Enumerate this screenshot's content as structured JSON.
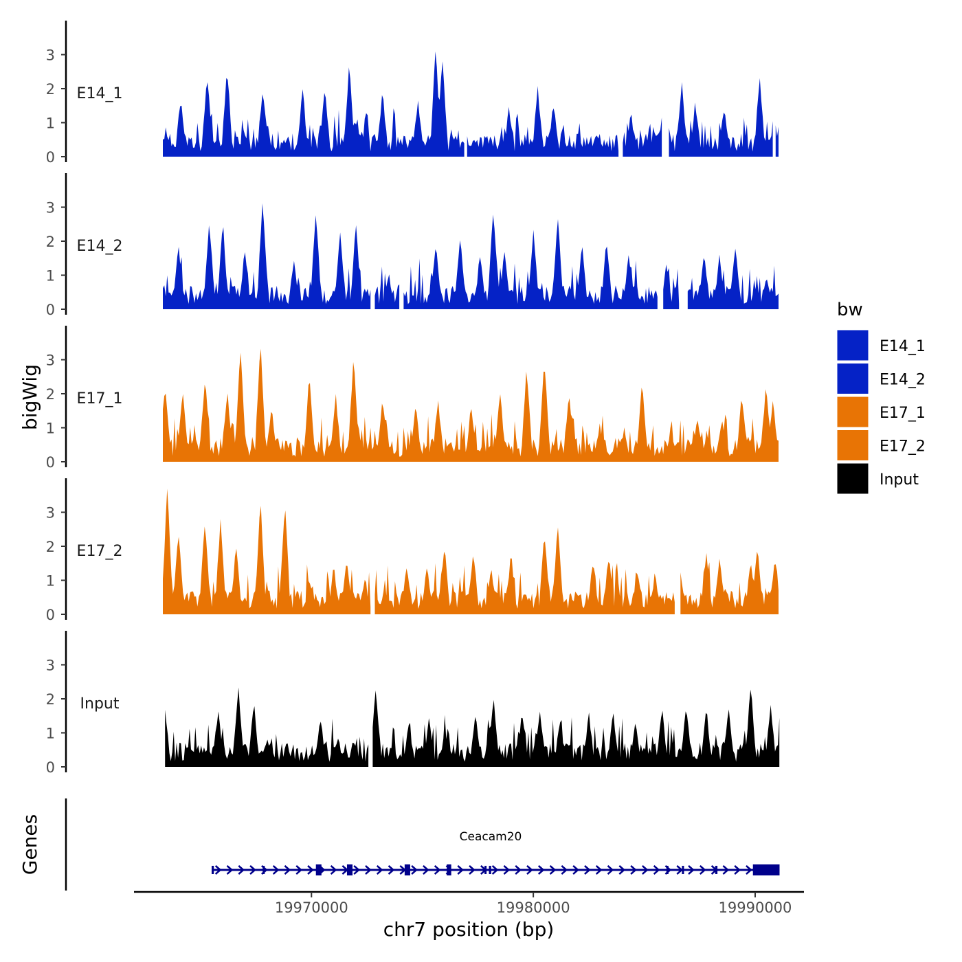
{
  "chart_data": {
    "type": "area",
    "y_axis_label": "bigWig",
    "genes_label": "Genes",
    "xlabel": "chr7 position (bp)",
    "xlim": [
      19962000,
      19992200
    ],
    "x_ticks": [
      19970000,
      19980000,
      19990000
    ],
    "x_tick_labels": [
      "19970000",
      "19980000",
      "19990000"
    ],
    "ylim": [
      0,
      4
    ],
    "y_ticks": [
      0,
      1,
      2,
      3
    ],
    "y_tick_labels": [
      "0",
      "1",
      "2",
      "3"
    ],
    "legend": {
      "title": "bw",
      "position": "right",
      "entries": [
        {
          "label": "E14_1",
          "color": "#0522C6"
        },
        {
          "label": "E14_2",
          "color": "#0522C6"
        },
        {
          "label": "E17_1",
          "color": "#E87405"
        },
        {
          "label": "E17_2",
          "color": "#E87405"
        },
        {
          "label": "Input",
          "color": "#000000"
        }
      ]
    },
    "tracks": [
      {
        "name": "E14_1",
        "color": "#0522C6",
        "x_start": 19963300,
        "x_end": 19991100,
        "peaks": [
          [
            19964100,
            1.6
          ],
          [
            19965300,
            2.3
          ],
          [
            19966200,
            2.5
          ],
          [
            19967800,
            1.9
          ],
          [
            19969600,
            1.9
          ],
          [
            19970600,
            2.0
          ],
          [
            19971700,
            2.6
          ],
          [
            19973200,
            1.8
          ],
          [
            19974800,
            1.6
          ],
          [
            19975600,
            3.1
          ],
          [
            19975900,
            2.8
          ],
          [
            19978900,
            1.3
          ],
          [
            19980200,
            1.9
          ],
          [
            19980900,
            1.5
          ],
          [
            19984400,
            1.2
          ],
          [
            19985800,
            1.0
          ],
          [
            19986700,
            2.0
          ],
          [
            19987300,
            1.5
          ],
          [
            19988600,
            1.3
          ],
          [
            19990200,
            2.2
          ]
        ],
        "gaps": [
          [
            19976900,
            19977000
          ],
          [
            19983900,
            19984000
          ],
          [
            19985800,
            19986100
          ],
          [
            19990800,
            19990900
          ]
        ]
      },
      {
        "name": "E14_2",
        "color": "#0522C6",
        "x_start": 19963300,
        "x_end": 19991100,
        "peaks": [
          [
            19964000,
            1.9
          ],
          [
            19965400,
            2.5
          ],
          [
            19966000,
            2.5
          ],
          [
            19967000,
            1.7
          ],
          [
            19967800,
            3.2
          ],
          [
            19969200,
            1.3
          ],
          [
            19970200,
            2.8
          ],
          [
            19971300,
            2.2
          ],
          [
            19972000,
            2.4
          ],
          [
            19973500,
            0.9
          ],
          [
            19975600,
            1.8
          ],
          [
            19976700,
            2.0
          ],
          [
            19977600,
            1.5
          ],
          [
            19978200,
            2.9
          ],
          [
            19978700,
            1.6
          ],
          [
            19980000,
            2.2
          ],
          [
            19981100,
            2.7
          ],
          [
            19982200,
            1.8
          ],
          [
            19983300,
            1.9
          ],
          [
            19984300,
            1.6
          ],
          [
            19986000,
            1.2
          ],
          [
            19987700,
            1.6
          ],
          [
            19988400,
            1.5
          ],
          [
            19989100,
            1.8
          ],
          [
            19990500,
            0.8
          ]
        ],
        "gaps": [
          [
            19972700,
            19972800
          ],
          [
            19974000,
            19974100
          ],
          [
            19985600,
            19985800
          ],
          [
            19986600,
            19986900
          ]
        ]
      },
      {
        "name": "E17_1",
        "color": "#E87405",
        "x_start": 19963300,
        "x_end": 19991100,
        "peaks": [
          [
            19963400,
            2.2
          ],
          [
            19964200,
            2.0
          ],
          [
            19965200,
            2.4
          ],
          [
            19966200,
            2.0
          ],
          [
            19966800,
            3.3
          ],
          [
            19967700,
            3.4
          ],
          [
            19968200,
            1.5
          ],
          [
            19969900,
            2.4
          ],
          [
            19971100,
            1.8
          ],
          [
            19971900,
            3.1
          ],
          [
            19973200,
            1.8
          ],
          [
            19974700,
            1.6
          ],
          [
            19975700,
            1.7
          ],
          [
            19977200,
            1.6
          ],
          [
            19978500,
            2.0
          ],
          [
            19979700,
            2.7
          ],
          [
            19980500,
            2.9
          ],
          [
            19981600,
            1.9
          ],
          [
            19983000,
            1.0
          ],
          [
            19984100,
            0.9
          ],
          [
            19984900,
            2.2
          ],
          [
            19986200,
            0.9
          ],
          [
            19987400,
            1.2
          ],
          [
            19988500,
            1.2
          ],
          [
            19989400,
            1.9
          ],
          [
            19990500,
            2.2
          ],
          [
            19990800,
            1.7
          ]
        ],
        "gaps": []
      },
      {
        "name": "E17_2",
        "color": "#E87405",
        "x_start": 19963300,
        "x_end": 19991100,
        "peaks": [
          [
            19963500,
            3.7
          ],
          [
            19964000,
            2.4
          ],
          [
            19965200,
            2.7
          ],
          [
            19965900,
            2.7
          ],
          [
            19966600,
            1.9
          ],
          [
            19967700,
            3.3
          ],
          [
            19968800,
            3.2
          ],
          [
            19969900,
            0.9
          ],
          [
            19971000,
            1.3
          ],
          [
            19971600,
            1.5
          ],
          [
            19972400,
            1.0
          ],
          [
            19974300,
            1.3
          ],
          [
            19975200,
            1.3
          ],
          [
            19976000,
            1.9
          ],
          [
            19977300,
            1.8
          ],
          [
            19978100,
            1.2
          ],
          [
            19979000,
            1.7
          ],
          [
            19980500,
            2.3
          ],
          [
            19981100,
            2.5
          ],
          [
            19982700,
            1.5
          ],
          [
            19983400,
            1.6
          ],
          [
            19984700,
            1.2
          ],
          [
            19985500,
            1.0
          ],
          [
            19986600,
            1.2
          ],
          [
            19987800,
            1.7
          ],
          [
            19988400,
            1.6
          ],
          [
            19989800,
            1.5
          ],
          [
            19990100,
            1.9
          ],
          [
            19990900,
            1.5
          ]
        ],
        "gaps": [
          [
            19972700,
            19972800
          ],
          [
            19986400,
            19986600
          ]
        ]
      },
      {
        "name": "Input",
        "color": "#000000",
        "x_start": 19963400,
        "x_end": 19991100,
        "peaks": [
          [
            19963400,
            1.5
          ],
          [
            19964500,
            0.7
          ],
          [
            19965800,
            1.6
          ],
          [
            19966700,
            2.3
          ],
          [
            19967400,
            1.8
          ],
          [
            19968000,
            0.8
          ],
          [
            19968900,
            0.6
          ],
          [
            19970400,
            1.4
          ],
          [
            19971200,
            0.8
          ],
          [
            19972900,
            2.2
          ],
          [
            19974400,
            1.2
          ],
          [
            19975300,
            1.3
          ],
          [
            19976000,
            0.9
          ],
          [
            19977400,
            1.5
          ],
          [
            19978200,
            2.0
          ],
          [
            19979500,
            1.5
          ],
          [
            19980300,
            1.6
          ],
          [
            19981200,
            1.3
          ],
          [
            19982500,
            1.5
          ],
          [
            19983600,
            1.5
          ],
          [
            19984600,
            1.2
          ],
          [
            19985800,
            1.6
          ],
          [
            19986900,
            1.7
          ],
          [
            19987800,
            1.6
          ],
          [
            19988800,
            1.7
          ],
          [
            19989800,
            2.3
          ],
          [
            19990700,
            1.7
          ]
        ],
        "gaps": [
          [
            19972600,
            19972700
          ]
        ]
      }
    ],
    "gene": {
      "name": "Ceacam20",
      "color": "#00008B",
      "strand": "+",
      "x_start": 19965500,
      "x_end": 19991100,
      "exons": [
        [
          19965500,
          19965600
        ],
        [
          19967800,
          19967850
        ],
        [
          19970200,
          19970450
        ],
        [
          19971600,
          19971850
        ],
        [
          19974200,
          19974450
        ],
        [
          19976100,
          19976300
        ],
        [
          19977800,
          19977850
        ],
        [
          19978000,
          19978100
        ],
        [
          19986000,
          19986050
        ],
        [
          19986700,
          19986750
        ],
        [
          19988200,
          19988300
        ],
        [
          19989900,
          19991100
        ]
      ]
    }
  }
}
